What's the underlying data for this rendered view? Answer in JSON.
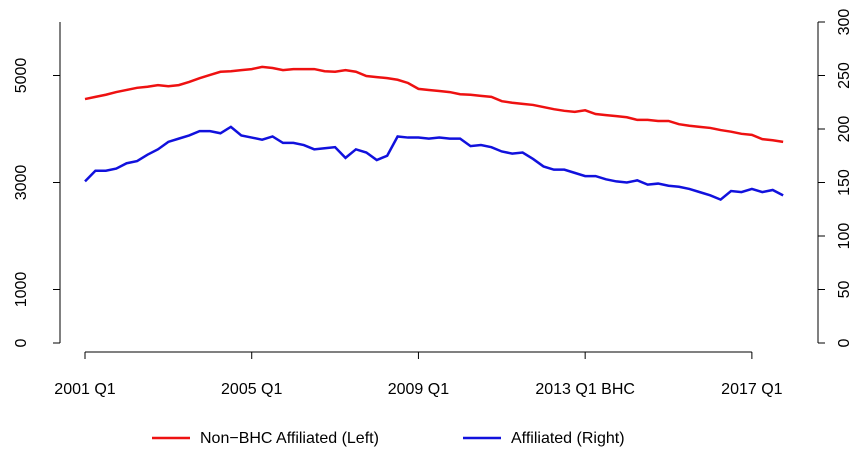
{
  "chart_data": {
    "type": "line",
    "categories": [
      "2001 Q1",
      null,
      null,
      null,
      null,
      null,
      null,
      null,
      null,
      null,
      null,
      null,
      null,
      null,
      null,
      null,
      "2005 Q1",
      null,
      null,
      null,
      null,
      null,
      null,
      null,
      null,
      null,
      null,
      null,
      null,
      null,
      null,
      null,
      "2009 Q1",
      null,
      null,
      null,
      null,
      null,
      null,
      null,
      null,
      null,
      null,
      null,
      null,
      null,
      null,
      null,
      "2013 Q1 BHC",
      null,
      null,
      null,
      null,
      null,
      null,
      null,
      null,
      null,
      null,
      null,
      null,
      null,
      null,
      null,
      "2017 Q1",
      null,
      null,
      null
    ],
    "series": [
      {
        "name": "Non−BHC Affiliated (Left)",
        "color": "#ee1111",
        "axis": "y",
        "values": [
          4560,
          4600,
          4640,
          4690,
          4730,
          4770,
          4790,
          4820,
          4800,
          4820,
          4880,
          4950,
          5010,
          5070,
          5080,
          5100,
          5120,
          5160,
          5140,
          5100,
          5120,
          5120,
          5120,
          5080,
          5070,
          5100,
          5070,
          4990,
          4970,
          4950,
          4920,
          4860,
          4750,
          4730,
          4710,
          4690,
          4650,
          4640,
          4620,
          4600,
          4520,
          4490,
          4470,
          4450,
          4410,
          4370,
          4340,
          4320,
          4350,
          4280,
          4260,
          4240,
          4220,
          4170,
          4170,
          4150,
          4150,
          4090,
          4060,
          4040,
          4020,
          3980,
          3950,
          3910,
          3890,
          3810,
          3790,
          3760
        ]
      },
      {
        "name": "Affiliated (Right)",
        "color": "#1111dd",
        "axis": "y2",
        "values": [
          151,
          161,
          161,
          163,
          168,
          170,
          176,
          181,
          188,
          191,
          194,
          198,
          198,
          196,
          202,
          194,
          192,
          190,
          193,
          187,
          187,
          185,
          181,
          182,
          183,
          173,
          181,
          178,
          171,
          175,
          193,
          192,
          192,
          191,
          192,
          191,
          191,
          184,
          185,
          183,
          179,
          177,
          178,
          172,
          165,
          162,
          162,
          159,
          156,
          156,
          153,
          151,
          150,
          152,
          148,
          149,
          147,
          146,
          144,
          141,
          138,
          134,
          142,
          141,
          144,
          141,
          143,
          138
        ]
      }
    ],
    "ylim": [
      0,
      6000
    ],
    "yticks": [
      0,
      1000,
      3000,
      5000
    ],
    "y2lim": [
      0,
      300
    ],
    "y2ticks": [
      0,
      50,
      100,
      150,
      200,
      250,
      300
    ],
    "legend": "bottom"
  }
}
